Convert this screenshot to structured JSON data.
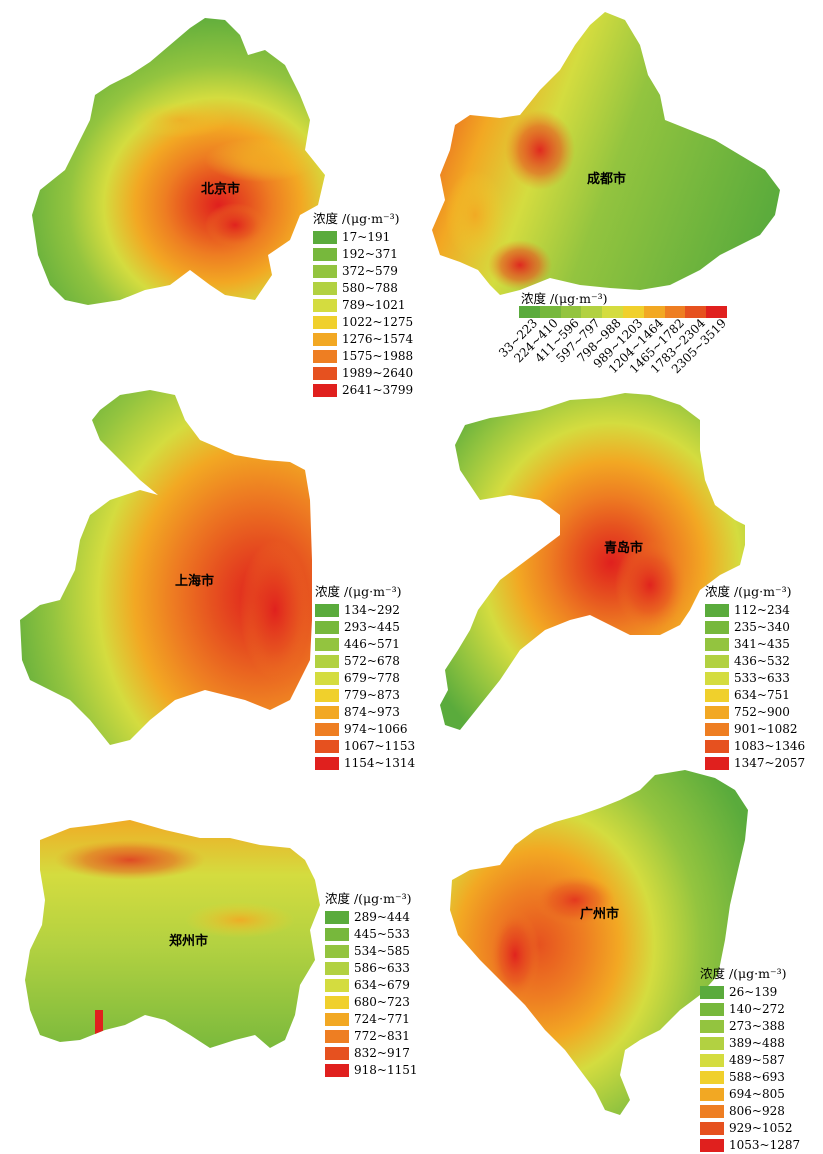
{
  "panels": [
    {
      "id": "beijing",
      "city": "北京市",
      "legend_title": "浓度 /(μg·m⁻³)",
      "classes": [
        "17~191",
        "192~371",
        "372~579",
        "580~788",
        "789~1021",
        "1022~1275",
        "1276~1574",
        "1575~1988",
        "1989~2640",
        "2641~3799"
      ]
    },
    {
      "id": "chengdu",
      "city": "成都市",
      "legend_title": "浓度 /(μg·m⁻³)",
      "classes": [
        "33~223",
        "224~410",
        "411~596",
        "597~797",
        "798~988",
        "989~1203",
        "1204~1464",
        "1465~1782",
        "1783~2304",
        "2305~3519"
      ]
    },
    {
      "id": "shanghai",
      "city": "上海市",
      "legend_title": "浓度 /(μg·m⁻³)",
      "classes": [
        "134~292",
        "293~445",
        "446~571",
        "572~678",
        "679~778",
        "779~873",
        "874~973",
        "974~1066",
        "1067~1153",
        "1154~1314"
      ]
    },
    {
      "id": "qingdao",
      "city": "青岛市",
      "legend_title": "浓度 /(μg·m⁻³)",
      "classes": [
        "112~234",
        "235~340",
        "341~435",
        "436~532",
        "533~633",
        "634~751",
        "752~900",
        "901~1082",
        "1083~1346",
        "1347~2057"
      ]
    },
    {
      "id": "zhengzhou",
      "city": "郑州市",
      "legend_title": "浓度 /(μg·m⁻³)",
      "classes": [
        "289~444",
        "445~533",
        "534~585",
        "586~633",
        "634~679",
        "680~723",
        "724~771",
        "772~831",
        "832~917",
        "918~1151"
      ]
    },
    {
      "id": "guangzhou",
      "city": "广州市",
      "legend_title": "浓度 /(μg·m⁻³)",
      "classes": [
        "26~139",
        "140~272",
        "273~388",
        "389~488",
        "489~587",
        "588~693",
        "694~805",
        "806~928",
        "929~1052",
        "1053~1287"
      ]
    }
  ],
  "palette": [
    "#5aab3c",
    "#77b83c",
    "#93c43f",
    "#b2d141",
    "#d4dc3f",
    "#f0d02c",
    "#f2a823",
    "#ee7e22",
    "#e6511f",
    "#e0201e"
  ]
}
